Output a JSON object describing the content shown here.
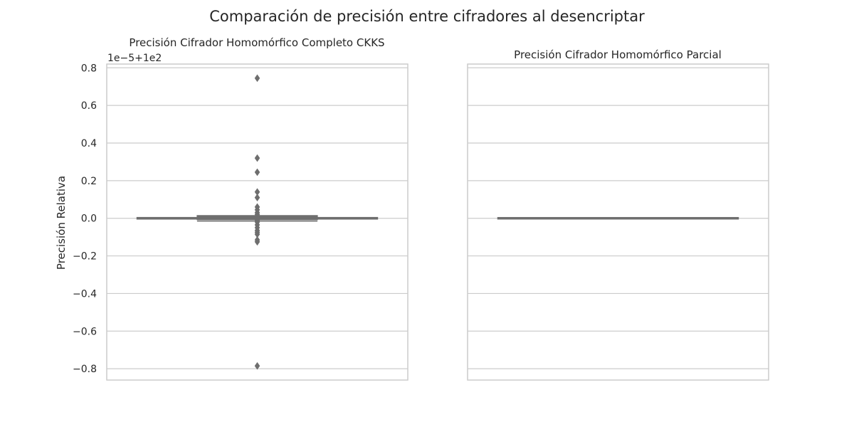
{
  "suptitle": "Comparación de precisión entre cifradores al desencriptar",
  "colors": {
    "background": "#ffffff",
    "grid": "#cccccc",
    "spine": "#cccccc",
    "box": "#6e6e6e",
    "text": "#262626"
  },
  "chart_data": [
    {
      "type": "box",
      "title": "Precisión Cifrador Homomórfico Completo CKKS",
      "ylabel": "Precisión Relativa",
      "xlabel": "",
      "offset_text": "1e−5+1e2",
      "ylim": [
        -0.86,
        0.82
      ],
      "yticks": [
        -0.8,
        -0.6,
        -0.4,
        -0.2,
        0.0,
        0.2,
        0.4,
        0.6,
        0.8
      ],
      "ytick_labels": [
        "−0.8",
        "−0.6",
        "−0.4",
        "−0.2",
        "0.0",
        "0.2",
        "0.4",
        "0.6",
        "0.8"
      ],
      "grid": true,
      "boxes": [
        {
          "position": 0.0,
          "q1": -0.005,
          "median": 0.0,
          "q3": 0.005,
          "whisker_low": -0.005,
          "whisker_high": 0.005,
          "width": 0.8
        },
        {
          "position": 0.0,
          "q1": -0.008,
          "median": 0.0,
          "q3": 0.015,
          "whisker_low": -0.015,
          "whisker_high": 0.015,
          "width": 0.4
        }
      ],
      "outliers": [
        0.745,
        0.32,
        0.245,
        0.14,
        0.11,
        0.06,
        0.045,
        0.03,
        0.02,
        0.01,
        -0.01,
        -0.02,
        -0.035,
        -0.05,
        -0.065,
        -0.075,
        -0.085,
        -0.115,
        -0.125,
        -0.785
      ],
      "xlim": [
        -0.5,
        0.5
      ]
    },
    {
      "type": "box",
      "title": "Precisión Cifrador Homomórfico Parcial",
      "ylabel": "",
      "xlabel": "",
      "ylim": [
        -0.86,
        0.82
      ],
      "yticks": [
        -0.8,
        -0.6,
        -0.4,
        -0.2,
        0.0,
        0.2,
        0.4,
        0.6,
        0.8
      ],
      "grid": true,
      "boxes": [
        {
          "position": 0.0,
          "q1": 0.0,
          "median": 0.0,
          "q3": 0.0,
          "whisker_low": 0.0,
          "whisker_high": 0.0,
          "width": 0.8
        }
      ],
      "outliers": [],
      "xlim": [
        -0.5,
        0.5
      ]
    }
  ]
}
